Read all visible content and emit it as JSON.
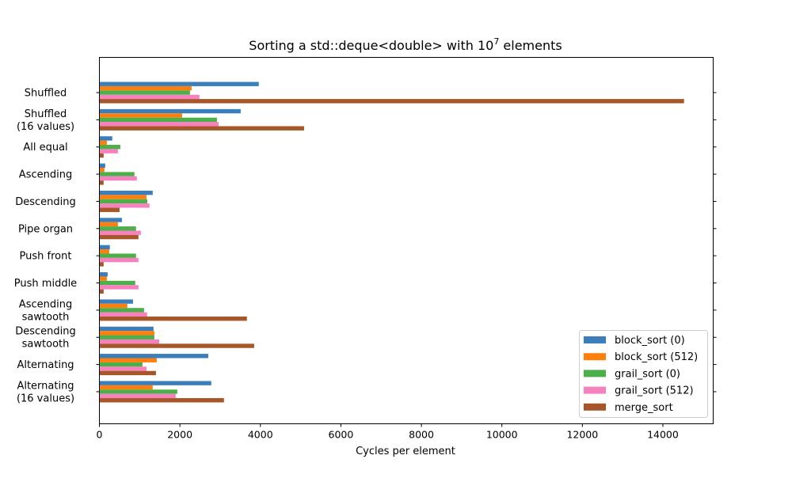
{
  "chart_data": {
    "type": "bar",
    "orientation": "horizontal",
    "title": "Sorting a std::deque<double> with 10",
    "title_superscript": "7",
    "title_suffix": " elements",
    "xlabel": "Cycles per element",
    "ylabel": "",
    "xlim": [
      0,
      15250
    ],
    "xticks": [
      0,
      2000,
      4000,
      6000,
      8000,
      10000,
      12000,
      14000
    ],
    "grid": false,
    "legend_position": "lower-right",
    "categories": [
      [
        "Shuffled"
      ],
      [
        "Shuffled",
        "(16 values)"
      ],
      [
        "All equal"
      ],
      [
        "Ascending"
      ],
      [
        "Descending"
      ],
      [
        "Pipe organ"
      ],
      [
        "Push front"
      ],
      [
        "Push middle"
      ],
      [
        "Ascending",
        "sawtooth"
      ],
      [
        "Descending",
        "sawtooth"
      ],
      [
        "Alternating"
      ],
      [
        "Alternating",
        "(16 values)"
      ]
    ],
    "series": [
      {
        "name": "block_sort (0)",
        "color": "#3a7fbc",
        "values": [
          3960,
          3510,
          320,
          145,
          1325,
          560,
          260,
          205,
          835,
          1345,
          2705,
          2780
        ]
      },
      {
        "name": "block_sort (512)",
        "color": "#ff7f0e",
        "values": [
          2290,
          2055,
          185,
          125,
          1170,
          460,
          245,
          185,
          695,
          1365,
          1425,
          1325
        ]
      },
      {
        "name": "grail_sort (0)",
        "color": "#4daf4a",
        "values": [
          2250,
          2920,
          520,
          870,
          1190,
          910,
          910,
          890,
          1110,
          1365,
          1070,
          1935
        ]
      },
      {
        "name": "grail_sort (512)",
        "color": "#f781bf",
        "values": [
          2485,
          2960,
          460,
          930,
          1245,
          1030,
          970,
          970,
          1185,
          1485,
          1170,
          1895
        ]
      },
      {
        "name": "merge_sort",
        "color": "#a65628",
        "values": [
          14525,
          5085,
          105,
          105,
          500,
          970,
          105,
          105,
          3665,
          3845,
          1405,
          3095
        ]
      }
    ]
  }
}
